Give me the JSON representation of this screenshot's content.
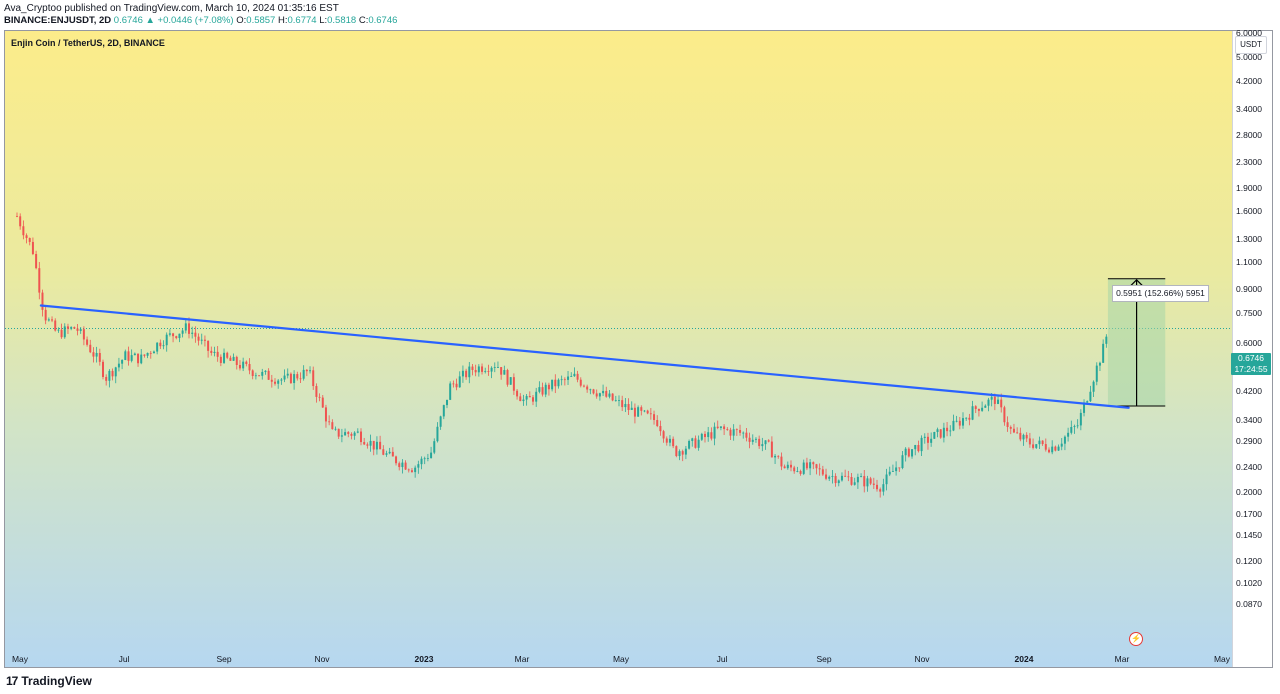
{
  "header": {
    "publisher_line": "Ava_Cryptoo published on TradingView.com, March 10, 2024 01:35:16 EST",
    "symbol": "BINANCE:ENJUSDT, 2D",
    "last": "0.6746",
    "change": "▲ +0.0446 (+7.08%)",
    "ohlc_o_label": "O:",
    "ohlc_o": "0.5857",
    "ohlc_h_label": "H:",
    "ohlc_h": "0.6774",
    "ohlc_l_label": "L:",
    "ohlc_l": "0.5818",
    "ohlc_c_label": "C:",
    "ohlc_c": "0.6746"
  },
  "chart_title": "Enjin Coin / TetherUS, 2D, BINANCE",
  "currency_button": "USDT",
  "price_label": {
    "price": "0.6746",
    "countdown": "17:24:55"
  },
  "measurement_label": "0.5951 (152.66%) 5951",
  "footer": {
    "logo": "17",
    "brand": "TradingView"
  },
  "colors": {
    "up": "#26a69a",
    "down": "#ef5350",
    "trendline": "#2962ff",
    "measure_fill": "#a5d6a7"
  },
  "chart_data": {
    "type": "candlestick",
    "symbol": "ENJUSDT",
    "interval": "2D",
    "y_scale": "log",
    "ylim": [
      0.08,
      7.0
    ],
    "y_ticks": [
      "6.0000",
      "5.0000",
      "4.2000",
      "3.4000",
      "2.8000",
      "2.3000",
      "1.9000",
      "1.6000",
      "1.3000",
      "1.1000",
      "0.9000",
      "0.7500",
      "0.6000",
      "0.5000",
      "0.4200",
      "0.3400",
      "0.2900",
      "0.2400",
      "0.2000",
      "0.1700",
      "0.1450",
      "0.1200",
      "0.1020",
      "0.0870"
    ],
    "x_ticks": [
      "May",
      "Jul",
      "Sep",
      "Nov",
      "2023",
      "Mar",
      "May",
      "Jul",
      "Sep",
      "Nov",
      "2024",
      "Mar",
      "May"
    ],
    "x_range": [
      "2022-04-25",
      "2024-05-20"
    ],
    "close_path": [
      [
        "2022-04-25",
        1.55
      ],
      [
        "2022-05-05",
        1.2
      ],
      [
        "2022-05-12",
        0.75
      ],
      [
        "2022-05-20",
        0.65
      ],
      [
        "2022-06-01",
        0.68
      ],
      [
        "2022-06-14",
        0.54
      ],
      [
        "2022-06-20",
        0.47
      ],
      [
        "2022-07-02",
        0.55
      ],
      [
        "2022-07-12",
        0.54
      ],
      [
        "2022-07-25",
        0.62
      ],
      [
        "2022-08-10",
        0.68
      ],
      [
        "2022-08-25",
        0.56
      ],
      [
        "2022-09-10",
        0.52
      ],
      [
        "2022-09-25",
        0.48
      ],
      [
        "2022-10-10",
        0.46
      ],
      [
        "2022-10-25",
        0.49
      ],
      [
        "2022-11-09",
        0.31
      ],
      [
        "2022-11-25",
        0.31
      ],
      [
        "2022-12-15",
        0.26
      ],
      [
        "2022-12-30",
        0.24
      ],
      [
        "2023-01-10",
        0.27
      ],
      [
        "2023-01-22",
        0.44
      ],
      [
        "2023-02-05",
        0.5
      ],
      [
        "2023-02-20",
        0.52
      ],
      [
        "2023-03-10",
        0.39
      ],
      [
        "2023-03-25",
        0.44
      ],
      [
        "2023-04-10",
        0.47
      ],
      [
        "2023-04-25",
        0.42
      ],
      [
        "2023-05-15",
        0.37
      ],
      [
        "2023-06-01",
        0.34
      ],
      [
        "2023-06-12",
        0.27
      ],
      [
        "2023-06-25",
        0.29
      ],
      [
        "2023-07-10",
        0.32
      ],
      [
        "2023-07-25",
        0.31
      ],
      [
        "2023-08-10",
        0.28
      ],
      [
        "2023-08-20",
        0.24
      ],
      [
        "2023-09-05",
        0.24
      ],
      [
        "2023-09-20",
        0.225
      ],
      [
        "2023-10-05",
        0.22
      ],
      [
        "2023-10-20",
        0.21
      ],
      [
        "2023-11-05",
        0.27
      ],
      [
        "2023-11-20",
        0.3
      ],
      [
        "2023-12-05",
        0.33
      ],
      [
        "2023-12-20",
        0.38
      ],
      [
        "2023-12-30",
        0.4
      ],
      [
        "2024-01-10",
        0.31
      ],
      [
        "2024-01-20",
        0.29
      ],
      [
        "2024-02-05",
        0.28
      ],
      [
        "2024-02-20",
        0.33
      ],
      [
        "2024-02-28",
        0.44
      ],
      [
        "2024-03-08",
        0.6
      ],
      [
        "2024-03-10",
        0.6746
      ]
    ],
    "trendline": [
      [
        "2022-05-10",
        0.8
      ],
      [
        "2024-03-23",
        0.375
      ]
    ],
    "measurement": {
      "from_price": 0.38,
      "to_price": 0.975,
      "from_date": "2024-03-10",
      "to_date": "2024-04-15",
      "label": "0.5951 (152.66%) 5951"
    },
    "last_price": 0.6746
  }
}
